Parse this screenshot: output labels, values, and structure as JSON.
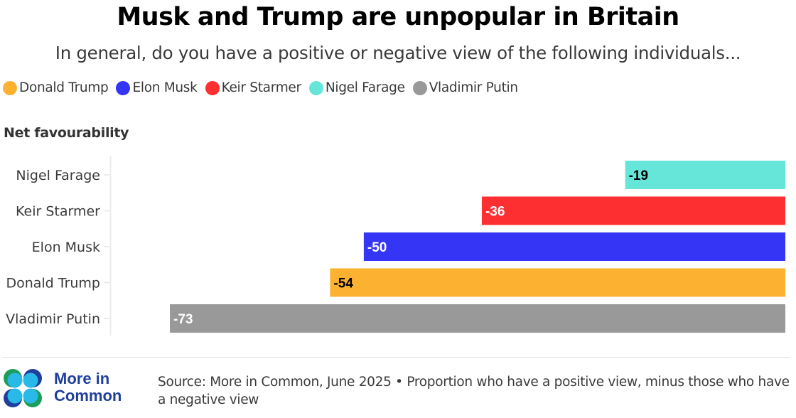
{
  "header": {
    "title": "Musk and Trump are unpopular in Britain",
    "subtitle": "In general, do you have a positive or negative view of the following individuals..."
  },
  "legend": [
    {
      "label": "Donald Trump",
      "color": "#fcb131"
    },
    {
      "label": "Elon Musk",
      "color": "#3535f5"
    },
    {
      "label": "Keir Starmer",
      "color": "#fd2f31"
    },
    {
      "label": "Nigel Farage",
      "color": "#66e6d9"
    },
    {
      "label": "Vladimir Putin",
      "color": "#999999"
    }
  ],
  "footer": {
    "logo_line1": "More in",
    "logo_line2": "Common",
    "source": "Source: More in Common, June 2025 • Proportion who have a positive view, minus those who have a negative view"
  },
  "chart_data": {
    "type": "bar",
    "orientation": "horizontal",
    "title": "Musk and Trump are unpopular in Britain",
    "subtitle": "In general, do you have a positive or negative view of the following individuals...",
    "xlabel": "",
    "ylabel": "Net favourability",
    "categories": [
      "Nigel Farage",
      "Keir Starmer",
      "Elon Musk",
      "Donald Trump",
      "Vladimir Putin"
    ],
    "values": [
      -19,
      -36,
      -50,
      -54,
      -73
    ],
    "value_labels": [
      "-19",
      "-36",
      "-50",
      "-54",
      "-73"
    ],
    "colors": [
      "#66e6d9",
      "#fd2f31",
      "#3535f5",
      "#fcb131",
      "#999999"
    ],
    "label_colors": [
      "#000000",
      "#ffffff",
      "#ffffff",
      "#000000",
      "#ffffff"
    ],
    "xlim": [
      -80,
      0
    ],
    "grid": false,
    "legend_position": "top-left"
  }
}
